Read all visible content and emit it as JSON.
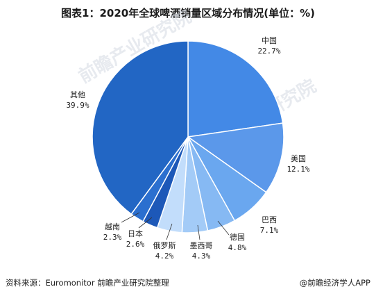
{
  "title": "图表1：2020年全球啤酒销量区域分布情况(单位：%)",
  "source": "资料来源：Euromonitor 前瞻产业研究院整理",
  "brand": "@前瞻经济学人APP",
  "watermark": "前瞻产业研究院",
  "chart_data": {
    "type": "pie",
    "unit": "%",
    "start_angle_deg": 0,
    "direction": "clockwise",
    "slices": [
      {
        "name": "中国",
        "value": 22.7,
        "display": "22.7%",
        "color": "#4389e6"
      },
      {
        "name": "美国",
        "value": 12.1,
        "display": "12.1%",
        "color": "#5b98ea"
      },
      {
        "name": "巴西",
        "value": 7.1,
        "display": "7.1%",
        "color": "#6aa7ef"
      },
      {
        "name": "德国",
        "value": 4.8,
        "display": "4.8%",
        "color": "#86b9f3"
      },
      {
        "name": "墨西哥",
        "value": 4.3,
        "display": "4.3%",
        "color": "#a3cbf7"
      },
      {
        "name": "俄罗斯",
        "value": 4.2,
        "display": "4.2%",
        "color": "#c2ddfb"
      },
      {
        "name": "日本",
        "value": 2.6,
        "display": "2.6%",
        "color": "#1d58b8"
      },
      {
        "name": "越南",
        "value": 2.3,
        "display": "2.3%",
        "color": "#2b6fcf"
      },
      {
        "name": "其他",
        "value": 39.9,
        "display": "39.9%",
        "color": "#2266c4"
      }
    ]
  }
}
